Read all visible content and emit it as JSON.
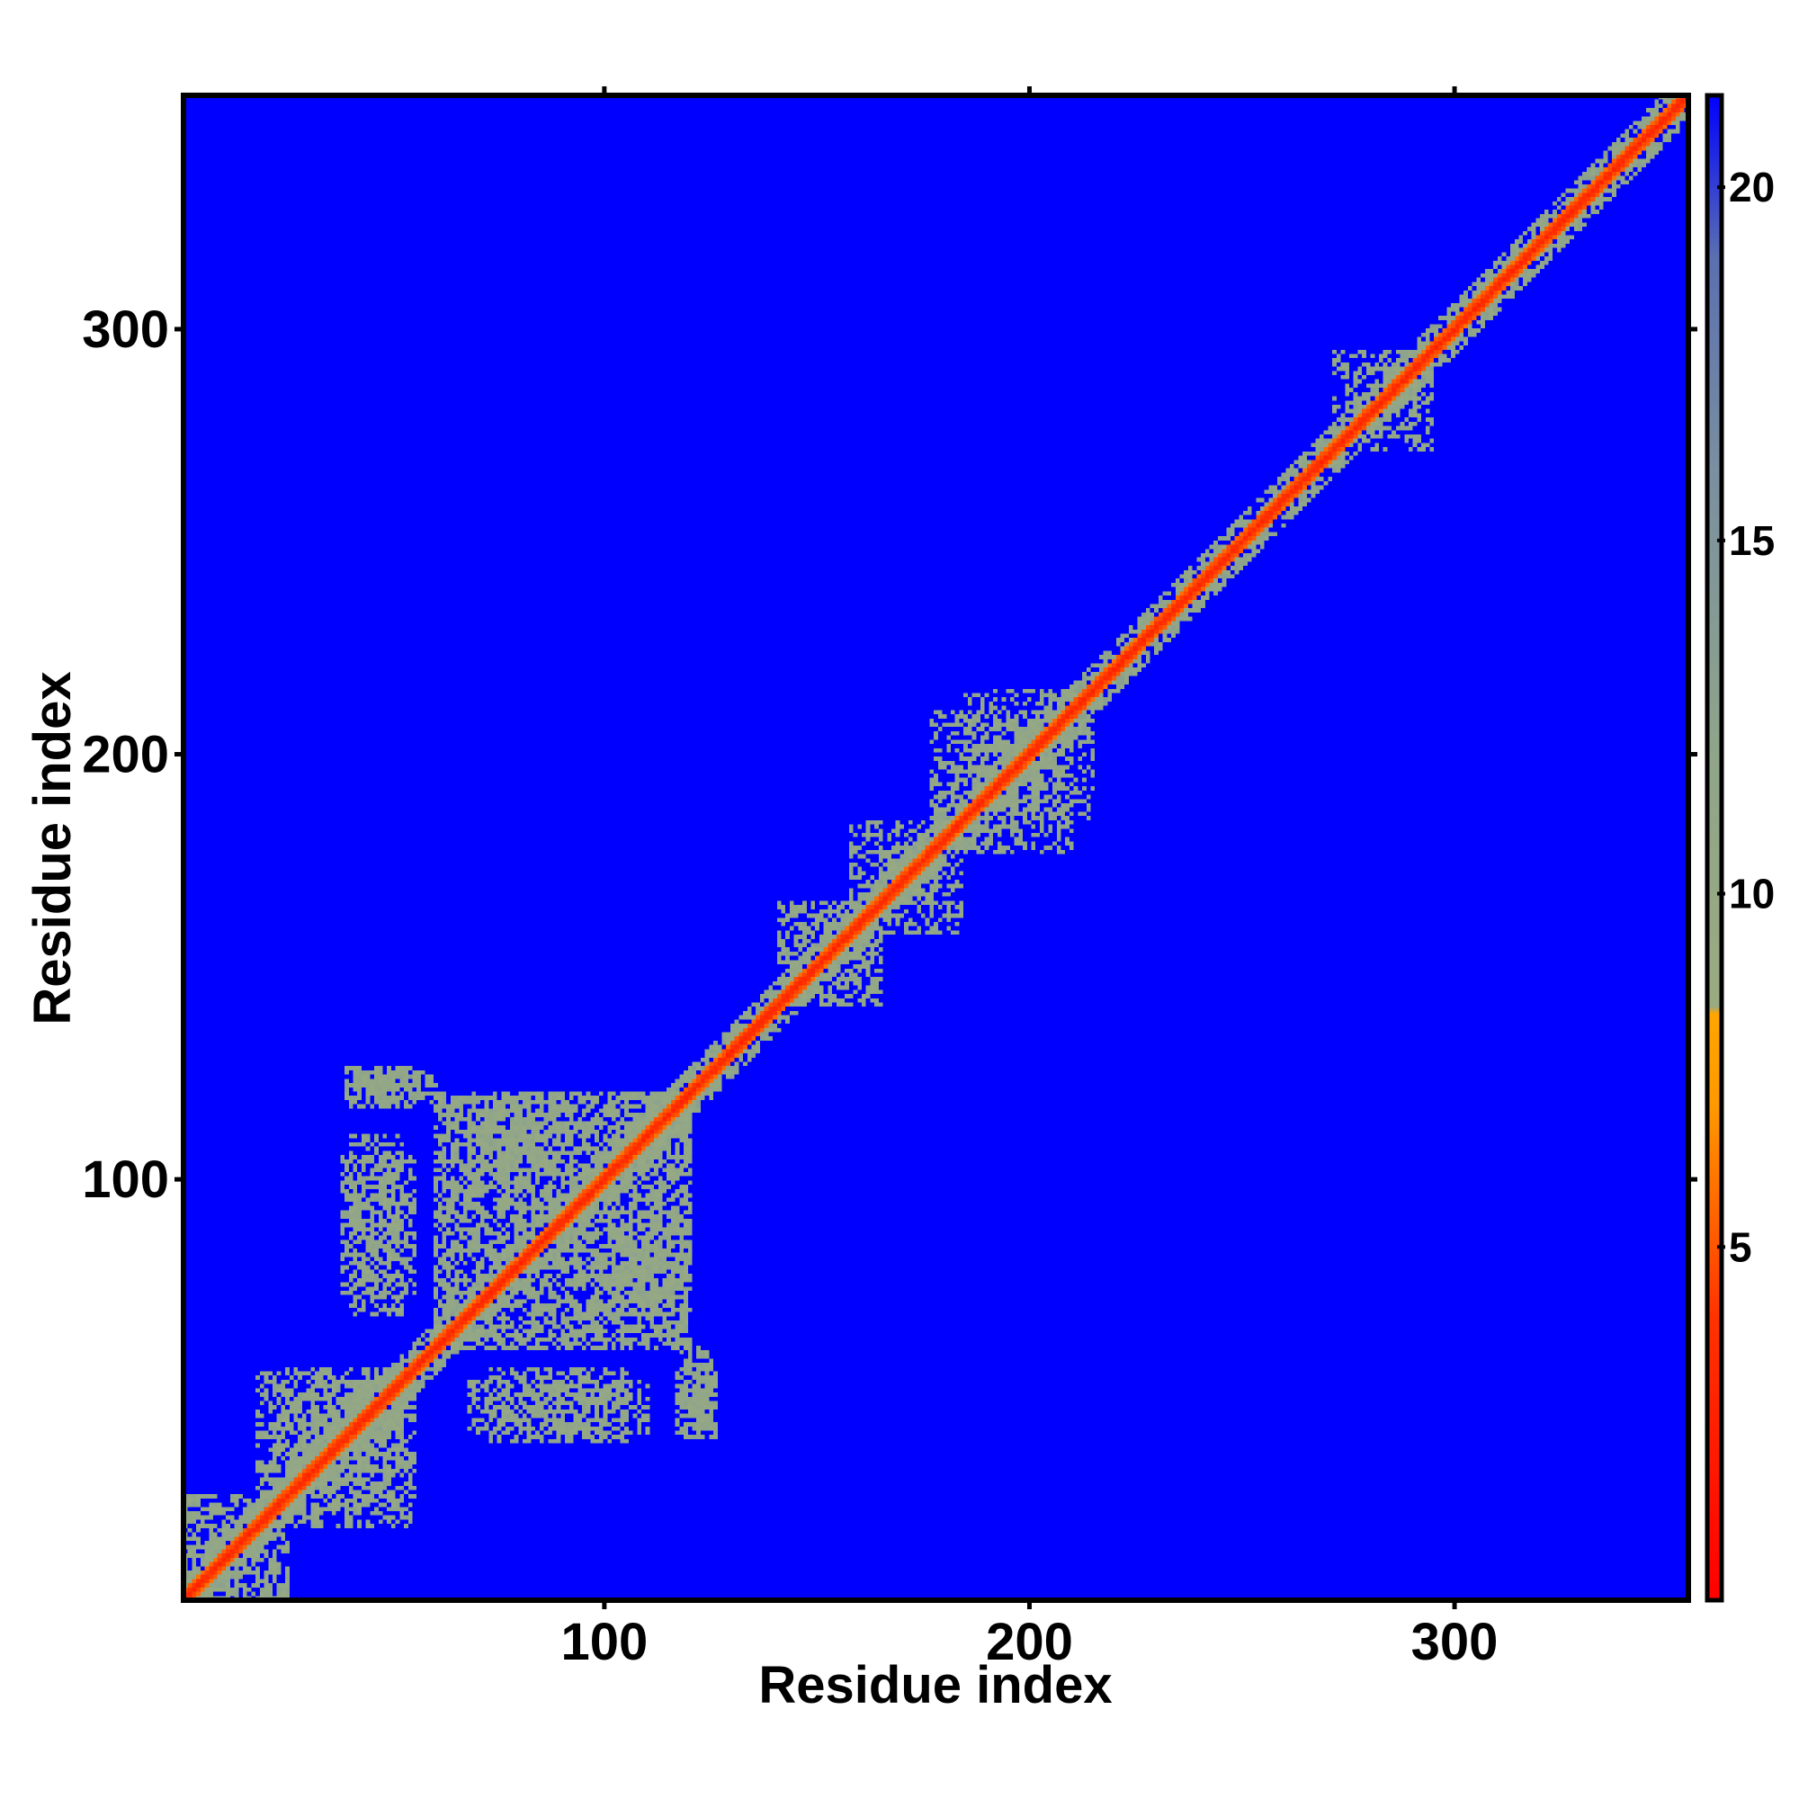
{
  "chart_data": {
    "type": "heatmap",
    "title": "",
    "xlabel": "Residue index",
    "ylabel": "Residue index",
    "n_residues": 355,
    "xlim": [
      1,
      355
    ],
    "ylim": [
      1,
      355
    ],
    "x_ticks": [
      100,
      200,
      300
    ],
    "y_ticks": [
      100,
      200,
      300
    ],
    "x_tick_labels": [
      "100",
      "200",
      "300"
    ],
    "y_tick_labels": [
      "100",
      "200",
      "300"
    ],
    "value_description": "pairwise residue distance map (symmetric); values capped at the top of the colour scale",
    "colorbar": {
      "range": [
        0,
        21.3
      ],
      "ticks": [
        5,
        10,
        15,
        20
      ],
      "tick_labels": [
        "5",
        "10",
        "15",
        "20"
      ],
      "stops": [
        {
          "value": 0,
          "color": "#ff0000"
        },
        {
          "value": 4,
          "color": "#ff3300"
        },
        {
          "value": 7,
          "color": "#ff9900"
        },
        {
          "value": 8.3,
          "color": "#ffa500"
        },
        {
          "value": 8.4,
          "color": "#9aab80"
        },
        {
          "value": 12,
          "color": "#8fa58a"
        },
        {
          "value": 16,
          "color": "#7a8fa0"
        },
        {
          "value": 19,
          "color": "#5a70b0"
        },
        {
          "value": 21.3,
          "color": "#0000ff"
        }
      ]
    },
    "background_value": 21.3,
    "background_color": "#0000ff",
    "diagonal": {
      "core_halfwidth": 2,
      "shell_halfwidth": 6,
      "core_value": 3,
      "shell_value": 11
    },
    "contact_regions": [
      {
        "x": [
          18,
          52
        ],
        "y": [
          22,
          55
        ],
        "value": 11,
        "density": 0.45
      },
      {
        "x": [
          60,
          120
        ],
        "y": [
          60,
          120
        ],
        "value": 11,
        "density": 0.4
      },
      {
        "x": [
          38,
          55
        ],
        "y": [
          73,
          105
        ],
        "value": 11,
        "density": 0.5
      },
      {
        "x": [
          40,
          60
        ],
        "y": [
          118,
          125
        ],
        "value": 11,
        "density": 0.5
      },
      {
        "x": [
          69,
          88
        ],
        "y": [
          103,
          119
        ],
        "value": 11,
        "density": 0.35
      },
      {
        "x": [
          68,
          110
        ],
        "y": [
          40,
          52
        ],
        "value": 11,
        "density": 0.45
      },
      {
        "x": [
          95,
          112
        ],
        "y": [
          68,
          80
        ],
        "value": 11,
        "density": 0.5
      },
      {
        "x": [
          117,
          126
        ],
        "y": [
          39,
          55
        ],
        "value": 11,
        "density": 0.5
      },
      {
        "x": [
          141,
          165
        ],
        "y": [
          143,
          165
        ],
        "value": 11,
        "density": 0.4
      },
      {
        "x": [
          158,
          178
        ],
        "y": [
          165,
          184
        ],
        "value": 11,
        "density": 0.4
      },
      {
        "x": [
          177,
          215
        ],
        "y": [
          183,
          210
        ],
        "value": 11,
        "density": 0.4
      },
      {
        "x": [
          272,
          292
        ],
        "y": [
          280,
          295
        ],
        "value": 11,
        "density": 0.4
      },
      {
        "x": [
          1,
          25
        ],
        "y": [
          1,
          25
        ],
        "value": 11,
        "density": 0.35
      }
    ]
  }
}
